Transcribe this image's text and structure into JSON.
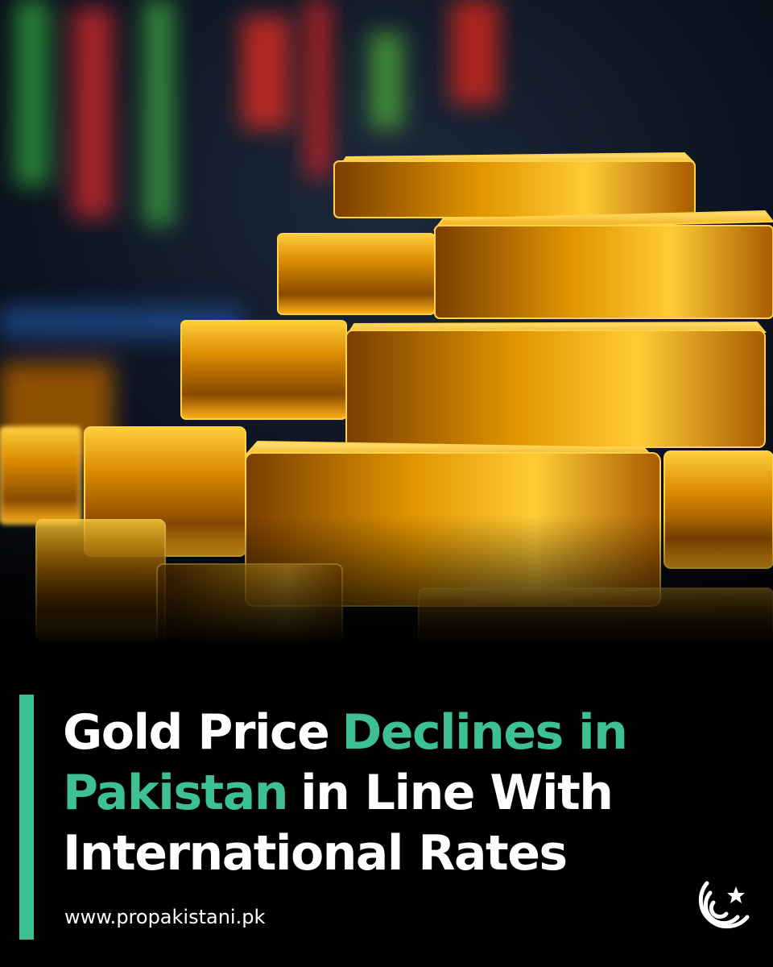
{
  "headline": {
    "lines": [
      [
        {
          "text": "Gold Price",
          "highlight": false
        },
        {
          "text": "Declines in",
          "highlight": true
        }
      ],
      [
        {
          "text": "Pakistan",
          "highlight": true
        },
        {
          "text": "in Line With",
          "highlight": false
        }
      ],
      [
        {
          "text": "International Rates",
          "highlight": false
        }
      ]
    ],
    "highlight_color": "#3dc095"
  },
  "footer": {
    "url": "www.propakistani.pk"
  }
}
